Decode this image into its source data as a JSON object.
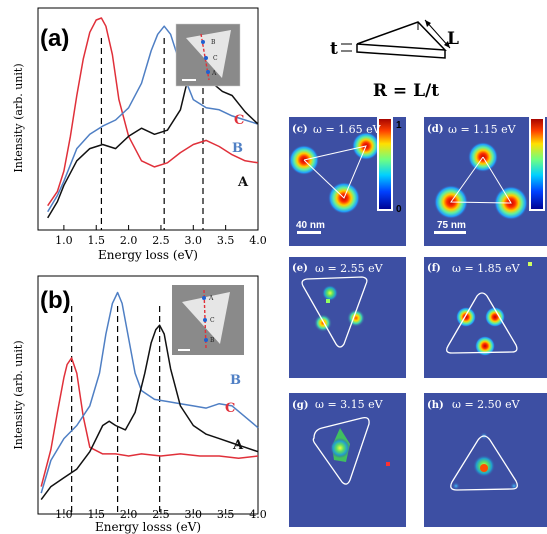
{
  "figure": {
    "schematic": {
      "t_label": "t",
      "L_label": "L",
      "equation": "R = L/t"
    },
    "maps": [
      {
        "label": "(c)",
        "omega": "ω = 1.65 eV",
        "scalebar": "40 nm",
        "colorbar_max": "1",
        "colorbar_min": "0"
      },
      {
        "label": "(d)",
        "omega": "ω = 1.15 eV",
        "scalebar": "75 nm"
      },
      {
        "label": "(e)",
        "omega": "ω = 2.55 eV"
      },
      {
        "label": "(f)",
        "omega": "ω = 1.85 eV"
      },
      {
        "label": "(g)",
        "omega": "ω = 3.15 eV"
      },
      {
        "label": "(h)",
        "omega": "ω = 2.50 eV"
      }
    ],
    "colors": {
      "A": "#111111",
      "B": "#4f7fc4",
      "C": "#e0303a",
      "map_bg": "#3d4fa3"
    }
  },
  "chart_data": [
    {
      "panel": "(a)",
      "type": "line",
      "xlabel": "Energy loss (eV)",
      "ylabel": "Intensity (arb. unit)",
      "xlim": [
        0.6,
        4.0
      ],
      "ylim": [
        0,
        1
      ],
      "xticks": [
        "1.0",
        "1.5",
        "2.0",
        "2.5",
        "3.0",
        "3.5",
        "4.0"
      ],
      "dashed_lines": [
        1.58,
        2.55,
        3.15
      ],
      "inset_labels": [
        "B",
        "C",
        "A"
      ],
      "series": [
        {
          "name": "C",
          "x": [
            0.75,
            0.9,
            1.0,
            1.1,
            1.2,
            1.3,
            1.4,
            1.5,
            1.58,
            1.65,
            1.75,
            1.85,
            2.0,
            2.2,
            2.4,
            2.6,
            2.8,
            3.0,
            3.2,
            3.4,
            3.6,
            3.8,
            4.0
          ],
          "y": [
            0.08,
            0.15,
            0.25,
            0.42,
            0.62,
            0.8,
            0.93,
            0.99,
            1.0,
            0.96,
            0.82,
            0.6,
            0.42,
            0.3,
            0.27,
            0.29,
            0.34,
            0.38,
            0.4,
            0.37,
            0.33,
            0.3,
            0.29
          ]
        },
        {
          "name": "B",
          "x": [
            0.75,
            0.9,
            1.0,
            1.2,
            1.4,
            1.6,
            1.8,
            2.0,
            2.2,
            2.35,
            2.45,
            2.55,
            2.65,
            2.75,
            2.9,
            3.0,
            3.2,
            3.4,
            3.6,
            3.8,
            4.0
          ],
          "y": [
            0.05,
            0.13,
            0.2,
            0.36,
            0.43,
            0.47,
            0.5,
            0.56,
            0.68,
            0.84,
            0.92,
            0.96,
            0.92,
            0.82,
            0.68,
            0.6,
            0.56,
            0.55,
            0.52,
            0.5,
            0.48
          ]
        },
        {
          "name": "A",
          "x": [
            0.75,
            0.9,
            1.0,
            1.2,
            1.4,
            1.6,
            1.8,
            2.0,
            2.2,
            2.4,
            2.6,
            2.8,
            2.9,
            3.0,
            3.1,
            3.15,
            3.2,
            3.3,
            3.45,
            3.6,
            3.7,
            3.8,
            4.0
          ],
          "y": [
            0.02,
            0.1,
            0.18,
            0.3,
            0.36,
            0.38,
            0.36,
            0.42,
            0.46,
            0.43,
            0.45,
            0.55,
            0.68,
            0.76,
            0.78,
            0.77,
            0.74,
            0.68,
            0.64,
            0.62,
            0.58,
            0.54,
            0.48
          ]
        }
      ]
    },
    {
      "panel": "(b)",
      "type": "line",
      "xlabel": "Energy losss (eV)",
      "ylabel": "Intensity (arb. unit)",
      "xlim": [
        0.6,
        4.0
      ],
      "ylim": [
        0,
        1
      ],
      "xticks": [
        "1.0",
        "1.5",
        "2.0",
        "2.5",
        "3.0",
        "3.5",
        "4.0"
      ],
      "dashed_lines": [
        1.12,
        1.83,
        2.48
      ],
      "inset_labels": [
        "A",
        "C",
        "B"
      ],
      "series": [
        {
          "name": "C",
          "x": [
            0.65,
            0.8,
            0.9,
            1.0,
            1.05,
            1.12,
            1.2,
            1.3,
            1.4,
            1.6,
            1.8,
            2.0,
            2.2,
            2.5,
            2.8,
            3.1,
            3.4,
            3.7,
            4.0
          ],
          "y": [
            0.08,
            0.25,
            0.42,
            0.58,
            0.64,
            0.67,
            0.6,
            0.4,
            0.26,
            0.23,
            0.23,
            0.22,
            0.23,
            0.22,
            0.23,
            0.22,
            0.22,
            0.21,
            0.22
          ]
        },
        {
          "name": "B",
          "x": [
            0.65,
            0.8,
            1.0,
            1.2,
            1.4,
            1.55,
            1.65,
            1.75,
            1.83,
            1.9,
            2.0,
            2.1,
            2.2,
            2.4,
            2.6,
            2.8,
            3.0,
            3.2,
            3.4,
            3.6,
            3.8,
            4.0
          ],
          "y": [
            0.05,
            0.2,
            0.3,
            0.36,
            0.45,
            0.6,
            0.78,
            0.92,
            0.97,
            0.92,
            0.76,
            0.6,
            0.52,
            0.48,
            0.47,
            0.46,
            0.45,
            0.44,
            0.46,
            0.45,
            0.4,
            0.35
          ]
        },
        {
          "name": "A",
          "x": [
            0.65,
            0.8,
            1.0,
            1.2,
            1.4,
            1.6,
            1.7,
            1.8,
            1.95,
            2.1,
            2.25,
            2.35,
            2.42,
            2.48,
            2.55,
            2.65,
            2.8,
            3.0,
            3.2,
            3.4,
            3.6,
            3.8,
            4.0
          ],
          "y": [
            0.02,
            0.08,
            0.12,
            0.16,
            0.24,
            0.36,
            0.38,
            0.36,
            0.34,
            0.42,
            0.6,
            0.74,
            0.8,
            0.82,
            0.78,
            0.62,
            0.45,
            0.36,
            0.32,
            0.3,
            0.28,
            0.26,
            0.24
          ]
        }
      ]
    }
  ]
}
